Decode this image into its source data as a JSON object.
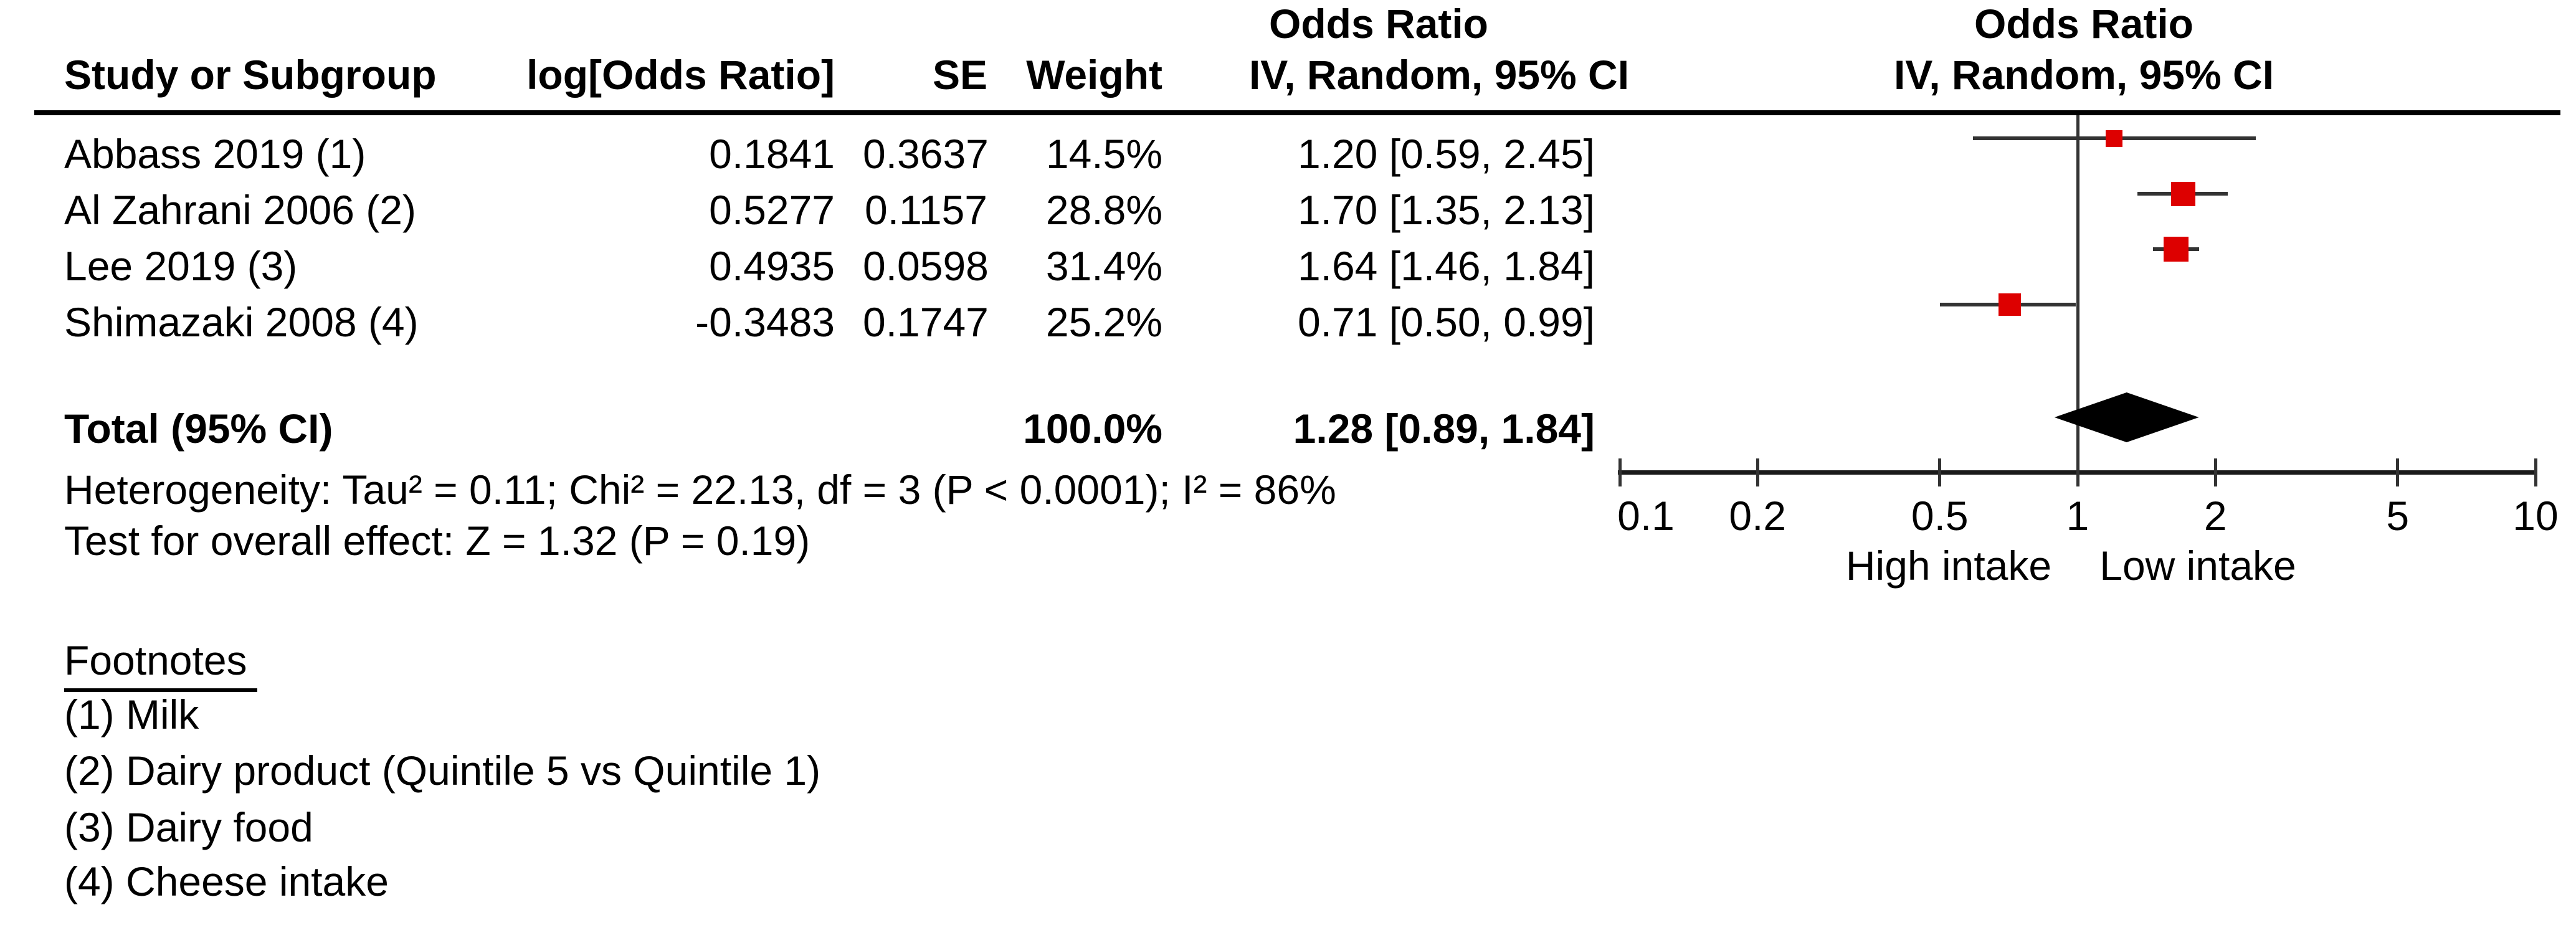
{
  "table": {
    "headers": {
      "effect_col_title": "Odds Ratio",
      "study": "Study or Subgroup",
      "log_or": "log[Odds Ratio]",
      "se": "SE",
      "weight": "Weight",
      "ci": "IV, Random, 95% CI",
      "plot_title": "Odds Ratio",
      "plot_subtitle": "IV, Random, 95% CI"
    },
    "studies": [
      {
        "name": "Abbass 2019 (1)",
        "log_or": "0.1841",
        "se": "0.3637",
        "weight": "14.5%",
        "ci_text": "1.20 [0.59, 2.45]"
      },
      {
        "name": "Al Zahrani 2006 (2)",
        "log_or": "0.5277",
        "se": "0.1157",
        "weight": "28.8%",
        "ci_text": "1.70 [1.35, 2.13]"
      },
      {
        "name": "Lee 2019 (3)",
        "log_or": "0.4935",
        "se": "0.0598",
        "weight": "31.4%",
        "ci_text": "1.64 [1.46, 1.84]"
      },
      {
        "name": "Shimazaki 2008 (4)",
        "log_or": "-0.3483",
        "se": "0.1747",
        "weight": "25.2%",
        "ci_text": "0.71 [0.50, 0.99]"
      }
    ],
    "total": {
      "label": "Total (95% CI)",
      "weight": "100.0%",
      "ci_text": "1.28 [0.89, 1.84]"
    },
    "heterogeneity": "Heterogeneity: Tau² = 0.11; Chi² = 22.13, df = 3 (P < 0.0001); I² = 86%",
    "overall_effect": "Test for overall effect: Z = 1.32 (P = 0.19)"
  },
  "footnotes": {
    "title": "Footnotes",
    "items": [
      "(1) Milk",
      "(2) Dairy product (Quintile 5 vs Quintile 1)",
      "(3) Dairy food",
      "(4) Cheese intake"
    ]
  },
  "chart_data": {
    "type": "forest",
    "effect_measure": "Odds Ratio",
    "model": "IV, Random, 95% CI",
    "scale": "log",
    "x_ticks": [
      0.1,
      0.2,
      0.5,
      1,
      2,
      5,
      10
    ],
    "xlim": [
      0.1,
      10
    ],
    "null_line": 1,
    "axis_label_left": "High intake",
    "axis_label_right": "Low intake",
    "studies": [
      {
        "name": "Abbass 2019 (1)",
        "or": 1.2,
        "ci_low": 0.59,
        "ci_high": 2.45,
        "weight_pct": 14.5
      },
      {
        "name": "Al Zahrani 2006 (2)",
        "or": 1.7,
        "ci_low": 1.35,
        "ci_high": 2.13,
        "weight_pct": 28.8
      },
      {
        "name": "Lee 2019 (3)",
        "or": 1.64,
        "ci_low": 1.46,
        "ci_high": 1.84,
        "weight_pct": 31.4
      },
      {
        "name": "Shimazaki 2008 (4)",
        "or": 0.71,
        "ci_low": 0.5,
        "ci_high": 0.99,
        "weight_pct": 25.2
      }
    ],
    "total": {
      "or": 1.28,
      "ci_low": 0.89,
      "ci_high": 1.84,
      "weight_pct": 100.0
    },
    "heterogeneity": {
      "tau2": 0.11,
      "chi2": 22.13,
      "df": 3,
      "p": "< 0.0001",
      "i2_pct": 86
    },
    "overall_effect_test": {
      "z": 1.32,
      "p": 0.19
    },
    "colors": {
      "square": "#DD0000",
      "diamond": "#000000",
      "line": "#333333"
    }
  }
}
